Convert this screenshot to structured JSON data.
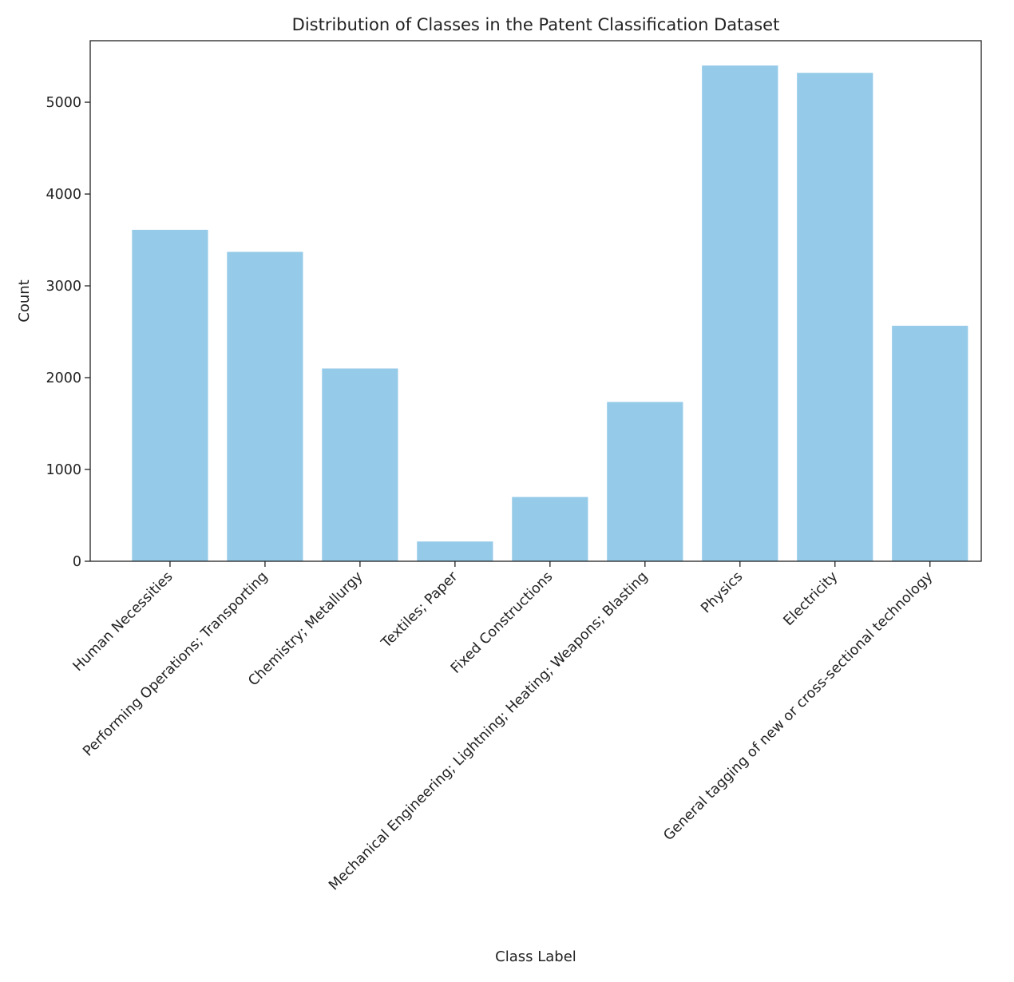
{
  "chart_data": {
    "type": "bar",
    "title": "Distribution of Classes in the Patent Classification Dataset",
    "xlabel": "Class Label",
    "ylabel": "Count",
    "categories": [
      "Human Necessities",
      "Performing Operations; Transporting",
      "Chemistry; Metallurgy",
      "Textiles; Paper",
      "Fixed Constructions",
      "Mechanical Engineering; Lightning; Heating; Weapons; Blasting",
      "Physics",
      "Electricity",
      "General tagging of new or cross-sectional technology"
    ],
    "values": [
      3610,
      3370,
      2100,
      215,
      700,
      1735,
      5400,
      5320,
      2565
    ],
    "ylim": [
      0,
      5670
    ],
    "yticks": [
      0,
      1000,
      2000,
      3000,
      4000,
      5000
    ],
    "grid": false,
    "legend": false,
    "bar_color": "#95cae8",
    "axis_color": "#222222"
  }
}
